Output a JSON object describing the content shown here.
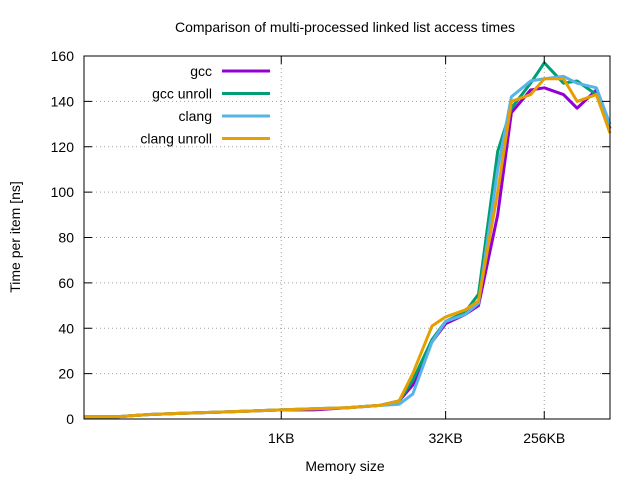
{
  "chart_data": {
    "type": "line",
    "title": "Comparison of multi-processed linked list access times",
    "xlabel": "Memory size",
    "ylabel": "Time per item [ns]",
    "x_scale": "log2",
    "x_unit": "bytes",
    "xlim": [
      16,
      1048576
    ],
    "ylim": [
      0,
      160
    ],
    "y_ticks": [
      0,
      20,
      40,
      60,
      80,
      100,
      120,
      140,
      160
    ],
    "x_ticks": [
      {
        "value": 1024,
        "label": "1KB"
      },
      {
        "value": 32768,
        "label": "32KB"
      },
      {
        "value": 262144,
        "label": "256KB"
      }
    ],
    "grid": true,
    "legend_position": "top-left",
    "series": [
      {
        "name": "gcc",
        "color": "#9400d3",
        "points": [
          [
            16,
            1
          ],
          [
            32,
            1
          ],
          [
            64,
            2
          ],
          [
            128,
            2.5
          ],
          [
            256,
            3
          ],
          [
            512,
            3.5
          ],
          [
            1024,
            4
          ],
          [
            2048,
            4
          ],
          [
            4096,
            5
          ],
          [
            8192,
            6
          ],
          [
            12288,
            8
          ],
          [
            16384,
            15
          ],
          [
            24576,
            34
          ],
          [
            32768,
            42
          ],
          [
            49152,
            46
          ],
          [
            65536,
            50
          ],
          [
            98304,
            90
          ],
          [
            131072,
            135
          ],
          [
            196608,
            145
          ],
          [
            262144,
            146
          ],
          [
            393216,
            143
          ],
          [
            524288,
            137
          ],
          [
            786432,
            145
          ],
          [
            1048576,
            128
          ]
        ]
      },
      {
        "name": "gcc unroll",
        "color": "#009e73",
        "points": [
          [
            16,
            1
          ],
          [
            32,
            1
          ],
          [
            64,
            2
          ],
          [
            128,
            2.5
          ],
          [
            256,
            3
          ],
          [
            512,
            3.5
          ],
          [
            1024,
            4
          ],
          [
            2048,
            4.5
          ],
          [
            4096,
            5
          ],
          [
            8192,
            6
          ],
          [
            12288,
            8
          ],
          [
            16384,
            17
          ],
          [
            24576,
            35
          ],
          [
            32768,
            43
          ],
          [
            49152,
            47
          ],
          [
            65536,
            55
          ],
          [
            98304,
            118
          ],
          [
            131072,
            137
          ],
          [
            196608,
            148
          ],
          [
            262144,
            157
          ],
          [
            393216,
            148
          ],
          [
            524288,
            149
          ],
          [
            786432,
            143
          ],
          [
            1048576,
            128
          ]
        ]
      },
      {
        "name": "clang",
        "color": "#56b4e9",
        "points": [
          [
            16,
            1
          ],
          [
            32,
            1
          ],
          [
            64,
            2
          ],
          [
            128,
            2.5
          ],
          [
            256,
            3
          ],
          [
            512,
            3.5
          ],
          [
            1024,
            4
          ],
          [
            2048,
            4.5
          ],
          [
            4096,
            5
          ],
          [
            8192,
            6
          ],
          [
            12288,
            6.5
          ],
          [
            16384,
            11
          ],
          [
            24576,
            34
          ],
          [
            32768,
            43
          ],
          [
            49152,
            46
          ],
          [
            65536,
            51
          ],
          [
            98304,
            110
          ],
          [
            131072,
            142
          ],
          [
            196608,
            149
          ],
          [
            262144,
            150
          ],
          [
            393216,
            151
          ],
          [
            524288,
            148
          ],
          [
            786432,
            146
          ],
          [
            1048576,
            130
          ]
        ]
      },
      {
        "name": "clang unroll",
        "color": "#e69f00",
        "points": [
          [
            16,
            1
          ],
          [
            32,
            1
          ],
          [
            64,
            2
          ],
          [
            128,
            2.5
          ],
          [
            256,
            3
          ],
          [
            512,
            3.5
          ],
          [
            1024,
            4
          ],
          [
            2048,
            4.5
          ],
          [
            4096,
            5
          ],
          [
            8192,
            6
          ],
          [
            12288,
            8
          ],
          [
            16384,
            20
          ],
          [
            24576,
            41
          ],
          [
            32768,
            45
          ],
          [
            49152,
            48
          ],
          [
            65536,
            52
          ],
          [
            98304,
            100
          ],
          [
            131072,
            140
          ],
          [
            196608,
            143
          ],
          [
            262144,
            150
          ],
          [
            393216,
            150
          ],
          [
            524288,
            140
          ],
          [
            786432,
            143
          ],
          [
            1048576,
            126
          ]
        ]
      }
    ]
  }
}
